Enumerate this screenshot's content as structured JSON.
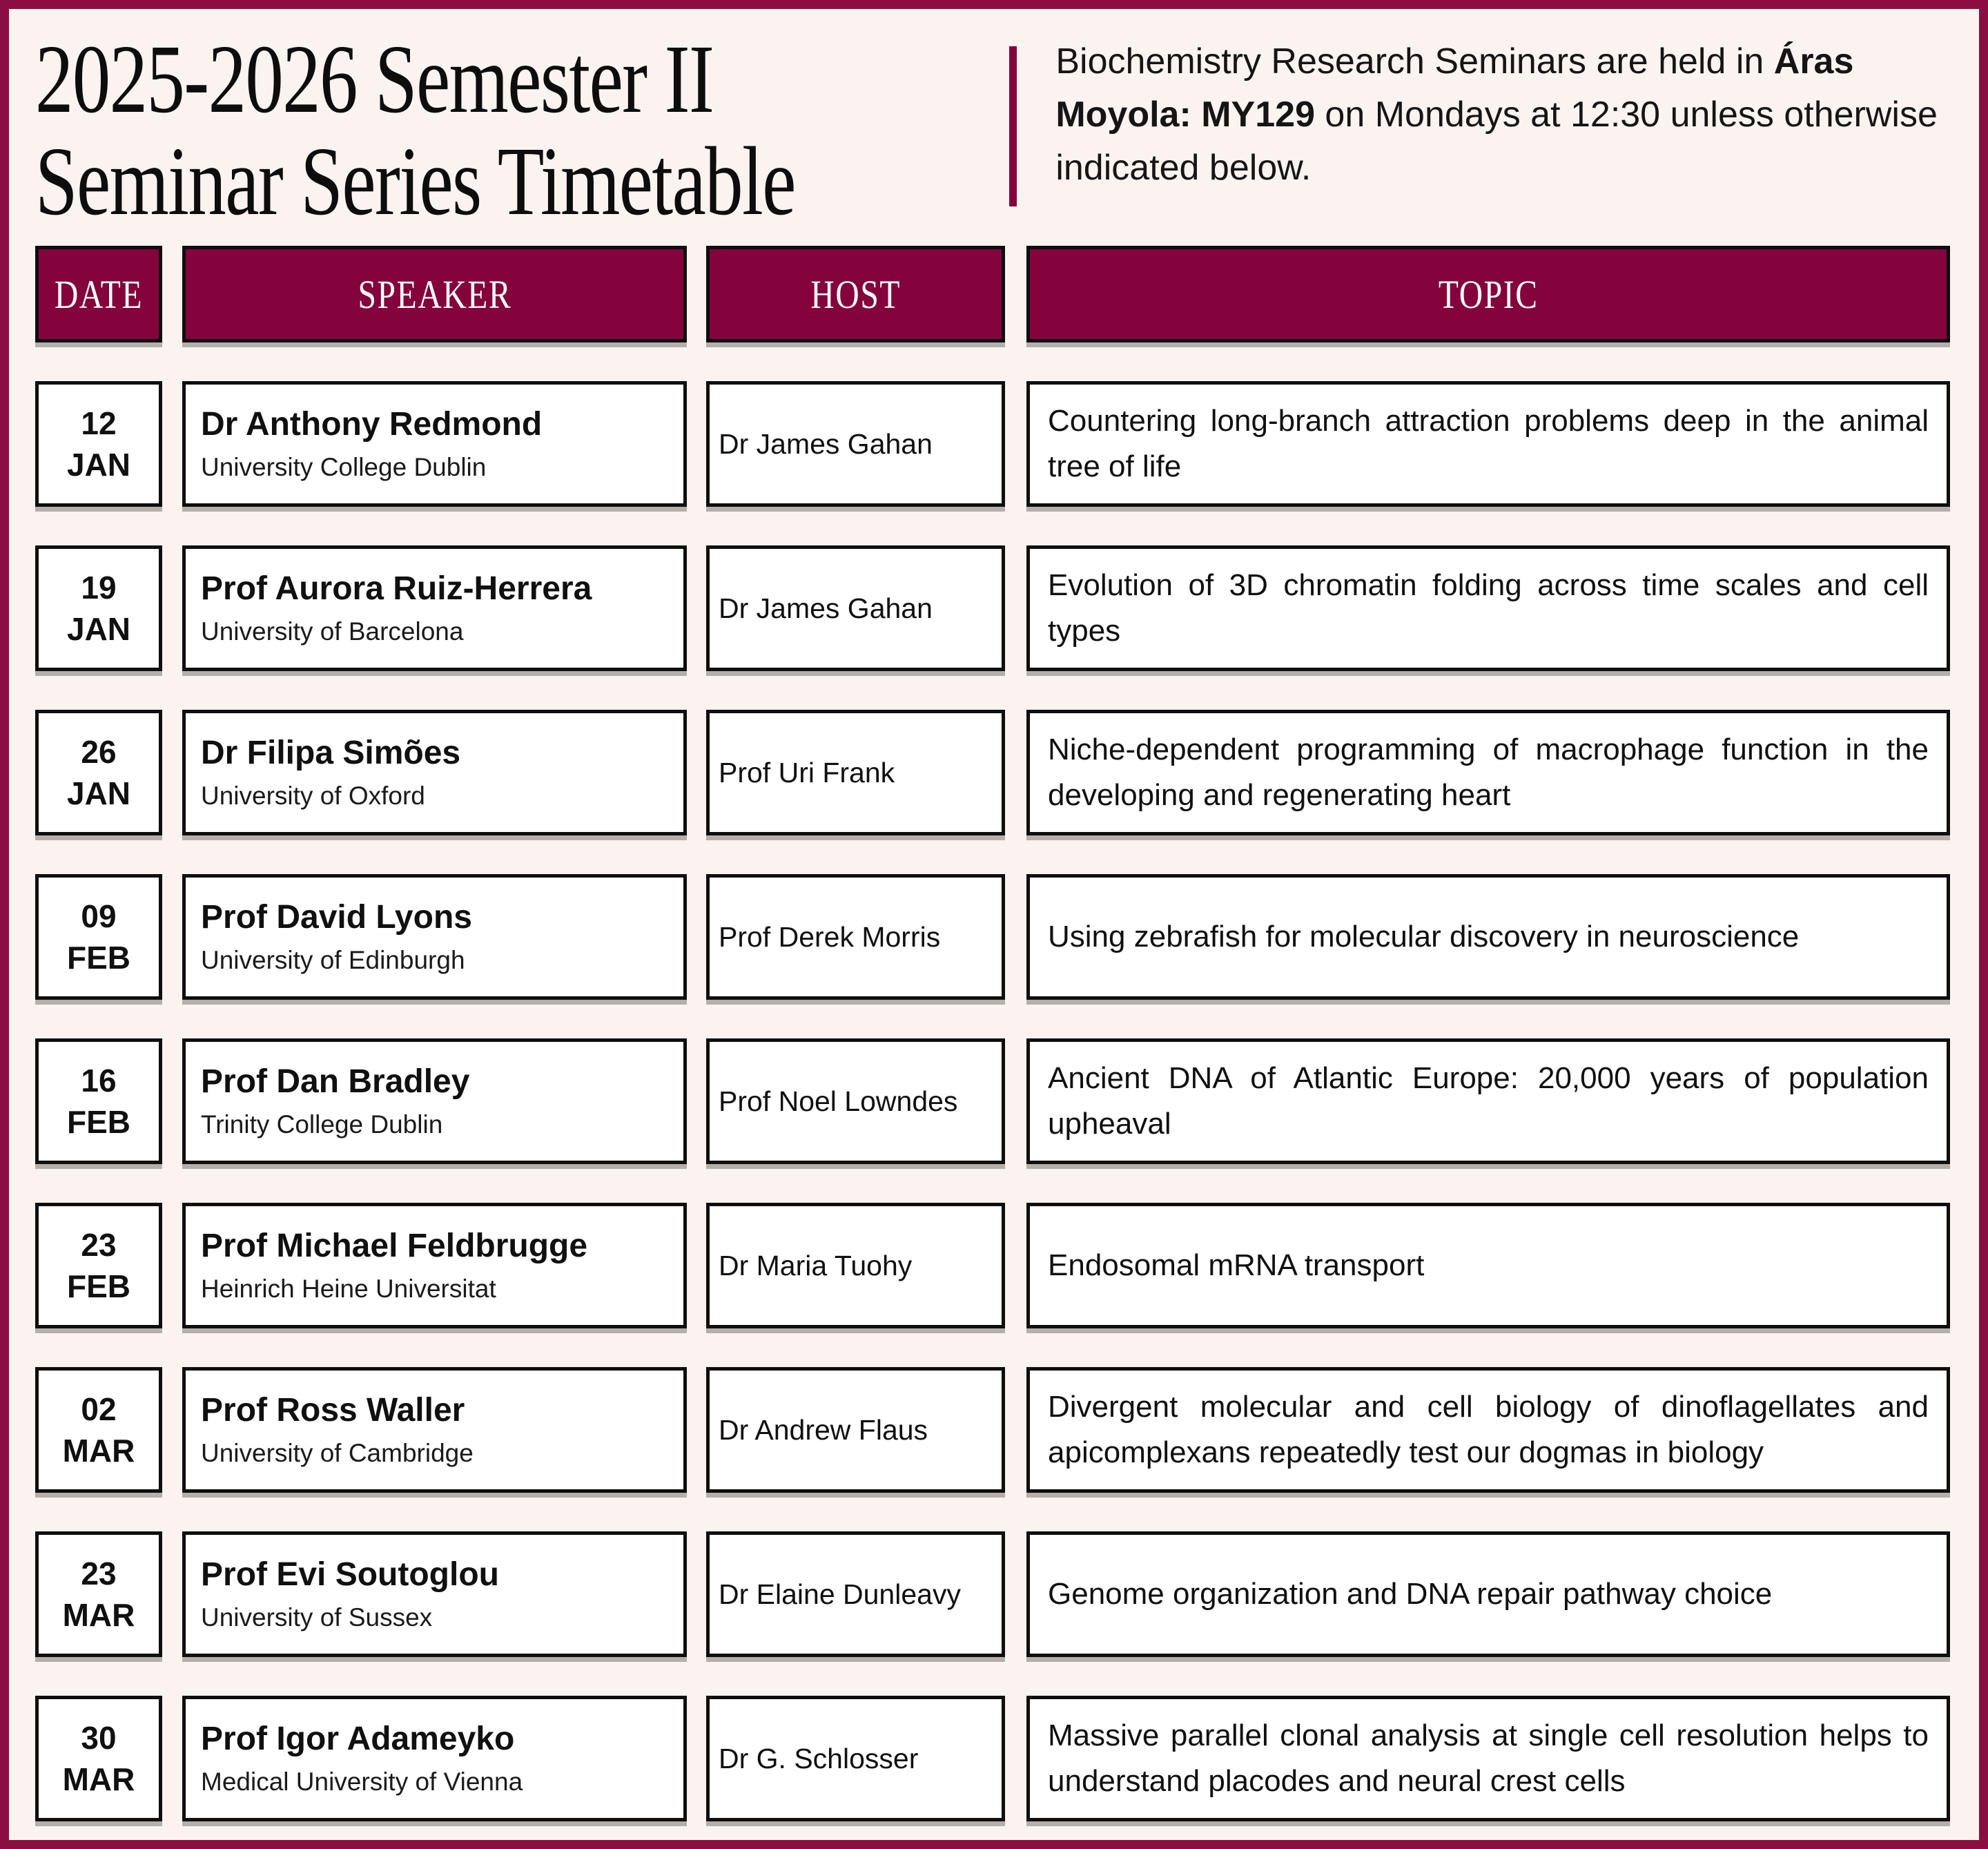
{
  "page": {
    "background": "#FBF3EF",
    "accent": "#84033C",
    "border_color": "#8A0F40"
  },
  "header": {
    "title_line1": "2025-2026 Semester II",
    "title_line2": "Seminar Series Timetable",
    "intro_line1": "Biochemistry Research Seminars are held in",
    "intro_line2_bold": "Áras Moyola: MY129",
    "intro_line2_rest": " on Mondays at 12:30",
    "intro_line3": "unless otherwise indicated below."
  },
  "table": {
    "columns": [
      "DATE",
      "SPEAKER",
      "HOST",
      "TOPIC"
    ],
    "rows": [
      {
        "day": "12",
        "month": "JAN",
        "speaker_name": "Dr Anthony Redmond",
        "speaker_affiliation": "University College Dublin",
        "host": "Dr James Gahan",
        "topic": "Countering long-branch attraction problems deep in the animal tree of life"
      },
      {
        "day": "19",
        "month": "JAN",
        "speaker_name": "Prof Aurora Ruiz-Herrera",
        "speaker_affiliation": "University of Barcelona",
        "host": "Dr James Gahan",
        "topic": "Evolution of 3D chromatin folding across time scales and cell types"
      },
      {
        "day": "26",
        "month": "JAN",
        "speaker_name": "Dr Filipa Simões",
        "speaker_affiliation": "University of Oxford",
        "host": "Prof Uri Frank",
        "topic": "Niche-dependent programming of macrophage function in the developing and regenerating heart"
      },
      {
        "day": "09",
        "month": "FEB",
        "speaker_name": "Prof David Lyons",
        "speaker_affiliation": "University of Edinburgh",
        "host": "Prof Derek Morris",
        "topic": "Using zebrafish for molecular discovery in neuroscience"
      },
      {
        "day": "16",
        "month": "FEB",
        "speaker_name": "Prof Dan Bradley",
        "speaker_affiliation": "Trinity College Dublin",
        "host": "Prof Noel Lowndes",
        "topic": "Ancient DNA of Atlantic Europe: 20,000 years of population upheaval"
      },
      {
        "day": "23",
        "month": "FEB",
        "speaker_name": "Prof Michael Feldbrugge",
        "speaker_affiliation": "Heinrich Heine Universitat",
        "host": "Dr Maria Tuohy",
        "topic": "Endosomal mRNA transport"
      },
      {
        "day": "02",
        "month": "MAR",
        "speaker_name": "Prof Ross Waller",
        "speaker_affiliation": "University of Cambridge",
        "host": "Dr Andrew Flaus",
        "topic": "Divergent molecular and cell biology of dinoflagellates and apicomplexans repeatedly test our dogmas in biology"
      },
      {
        "day": "23",
        "month": "MAR",
        "speaker_name": "Prof Evi Soutoglou",
        "speaker_affiliation": "University of Sussex",
        "host": "Dr Elaine Dunleavy",
        "topic": "Genome organization and DNA repair pathway choice"
      },
      {
        "day": "30",
        "month": "MAR",
        "speaker_name": "Prof Igor Adameyko",
        "speaker_affiliation": "Medical University of Vienna",
        "host": "Dr G. Schlosser",
        "topic": "Massive parallel clonal analysis at single cell resolution helps to understand placodes and neural crest cells"
      }
    ]
  }
}
